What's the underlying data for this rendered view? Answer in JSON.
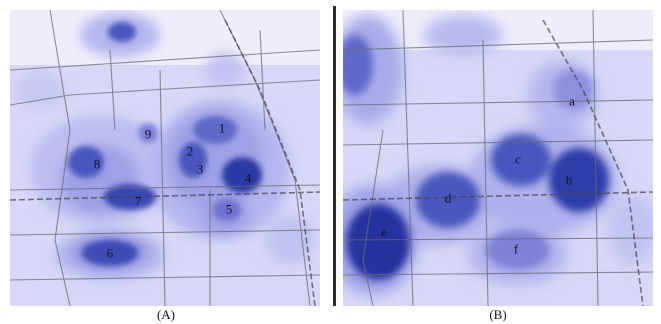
{
  "panels": [
    {
      "caption": "(A)",
      "labels": [
        "1",
        "2",
        "3",
        "4",
        "5",
        "6",
        "7",
        "8",
        "9"
      ]
    },
    {
      "caption": "(B)",
      "labels": [
        "a",
        "b",
        "c",
        "d",
        "e",
        "f"
      ]
    }
  ],
  "colors": {
    "background": "#d9d9f7",
    "low_density": "#b8b9ee",
    "mid_density": "#7c82d8",
    "high_density": "#2c3aa6",
    "roads": "#6a6a78",
    "divider": "#2a2a2a"
  }
}
